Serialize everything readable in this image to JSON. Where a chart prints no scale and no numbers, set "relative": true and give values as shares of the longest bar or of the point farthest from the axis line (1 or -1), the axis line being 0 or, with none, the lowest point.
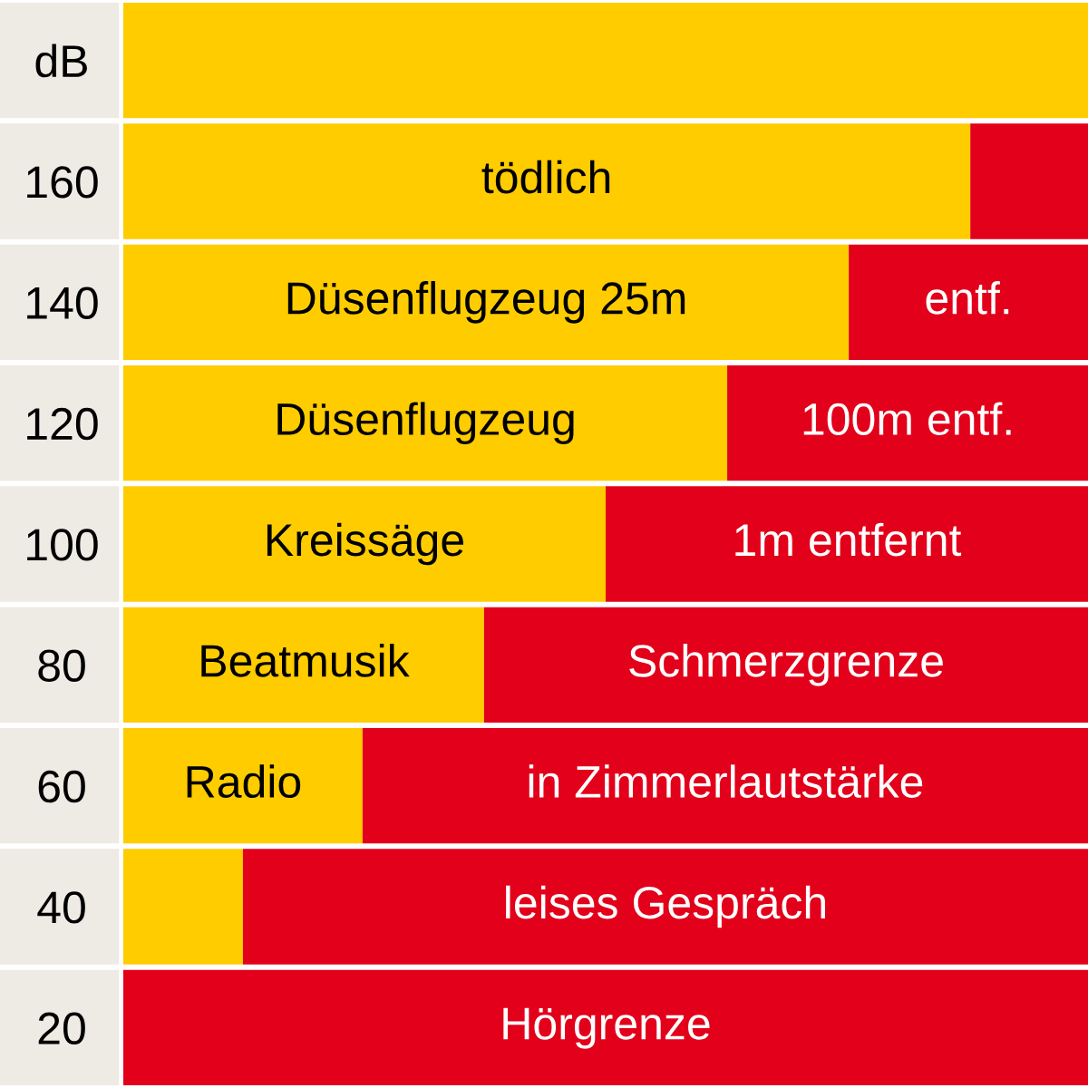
{
  "chart_data": {
    "type": "bar",
    "orientation": "horizontal",
    "stacked": true,
    "relative": true,
    "tick_labels": "y",
    "categories": [
      "dB",
      "160",
      "140",
      "120",
      "100",
      "80",
      "60",
      "40",
      "20"
    ],
    "series": [
      {
        "color": "#ffcc00",
        "values": [
          1,
          0.878,
          0.752,
          0.626,
          0.5,
          0.374,
          0.248,
          0.124,
          null
        ]
      },
      {
        "color": "#e2001a",
        "values": [
          null,
          0.122,
          0.248,
          0.374,
          0.5,
          0.626,
          0.752,
          0.876,
          1
        ]
      }
    ],
    "annotations": [
      {
        "text": "tödlich",
        "x": 0.439,
        "y": "160"
      },
      {
        "text": "Düsenflugzeug 25m",
        "x": 0.376,
        "y": "140"
      },
      {
        "text": "entf.",
        "x": 0.876,
        "y": "140"
      },
      {
        "text": "Düsenflugzeug",
        "x": 0.313,
        "y": "120"
      },
      {
        "text": "100m entf.",
        "x": 0.813,
        "y": "120"
      },
      {
        "text": "Kreissäge",
        "x": 0.25,
        "y": "100"
      },
      {
        "text": "1m entfernt",
        "x": 0.75,
        "y": "100"
      },
      {
        "text": "Beatmusik",
        "x": 0.187,
        "y": "80"
      },
      {
        "text": "Schmerzgrenze",
        "x": 0.687,
        "y": "80"
      },
      {
        "text": "Radio",
        "x": 0.124,
        "y": "60"
      },
      {
        "text": "in Zimmerlautstärke",
        "x": 0.624,
        "y": "60"
      },
      {
        "text": "leises Gespräch",
        "x": 0.562,
        "y": "40"
      },
      {
        "text": "Hörgrenze",
        "x": 0.5,
        "y": "20"
      }
    ]
  }
}
